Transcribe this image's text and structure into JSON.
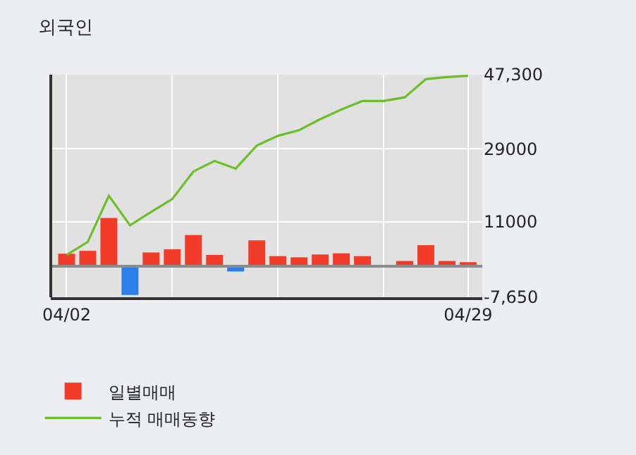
{
  "chart_data": {
    "type": "bar",
    "title": "외국인",
    "categories": [
      "04/02",
      null,
      null,
      null,
      null,
      null,
      null,
      null,
      null,
      null,
      null,
      null,
      null,
      null,
      null,
      null,
      null,
      null,
      null,
      "04/29"
    ],
    "series": [
      {
        "name": "일별매매",
        "colors": [
          "#f03c28",
          "#f03c28",
          "#f03c28",
          "#2a7fea",
          "#f03c28",
          "#f03c28",
          "#f03c28",
          "#f03c28",
          "#2a7fea",
          "#f03c28",
          "#f03c28",
          "#f03c28",
          "#f03c28",
          "#f03c28",
          "#f03c28",
          "#f03c28",
          "#f03c28",
          "#f03c28",
          "#f03c28",
          "#f03c28"
        ],
        "values": [
          3100,
          3800,
          11900,
          -7100,
          3400,
          4200,
          7700,
          2800,
          -1300,
          6400,
          2500,
          2200,
          2900,
          3200,
          2500,
          0,
          1300,
          5200,
          1300,
          1000
        ]
      },
      {
        "name": "누적 매매동향",
        "type": "line",
        "color": "#6cbf2a",
        "values": [
          2800,
          6000,
          17400,
          10100,
          13400,
          16600,
          23400,
          26000,
          24100,
          29800,
          32200,
          33600,
          36300,
          38700,
          40800,
          40800,
          41700,
          46200,
          46700,
          47000
        ]
      }
    ],
    "ylim": [
      -7650,
      47300
    ],
    "yticks": [
      {
        "value": 47300,
        "label": "47,300"
      },
      29000,
      11000,
      {
        "value": -7650,
        "label": "-7,650"
      }
    ],
    "ref_lines": [
      {
        "axis": "y",
        "value": 0,
        "color": "#8c8c8c"
      }
    ],
    "grid": true,
    "legend": "bottom"
  }
}
